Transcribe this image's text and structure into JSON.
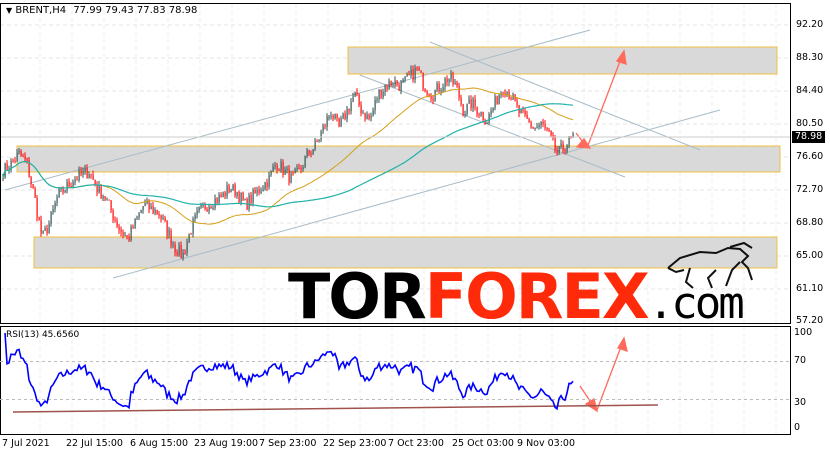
{
  "header": {
    "symbol": "BRENT,H4",
    "ohlc": "77.99 79.43 77.83 78.98",
    "collapse_icon": "triangle-down-icon"
  },
  "price_axis": {
    "ticks": [
      "92.20",
      "88.30",
      "84.40",
      "80.50",
      "76.60",
      "72.70",
      "68.80",
      "65.00",
      "61.10",
      "57.20"
    ],
    "current_price": "78.98"
  },
  "rsi": {
    "label": "RSI(13) 45.6560",
    "ticks": [
      "100",
      "70",
      "30",
      "0"
    ]
  },
  "time_axis": {
    "ticks": [
      "7 Jul 2021",
      "22 Jul 15:00",
      "6 Aug 15:00",
      "23 Aug 19:00",
      "7 Sep 23:00",
      "22 Sep 23:00",
      "7 Oct 23:00",
      "25 Oct 03:00",
      "9 Nov 03:00"
    ]
  },
  "logo": {
    "part1": "TOR",
    "part2": "FOREX",
    "part3": ".com"
  },
  "colors": {
    "bull_candle": "#2f4f4f",
    "bear_candle": "#ff0000",
    "ma_fast": "#d4a017",
    "ma_slow": "#20b2aa",
    "rsi_line": "#0000ff",
    "zone_fill": "#d9d9d9",
    "zone_border": "#f0c040",
    "arrow": "#ff6a5a",
    "logo_accent": "#ff2a0a"
  },
  "chart_data": {
    "type": "candlestick",
    "symbol": "BRENT",
    "timeframe": "H4",
    "ylim": [
      57.2,
      92.2
    ],
    "approx_close_path": [
      75,
      75.8,
      77,
      76,
      72,
      67,
      69,
      72,
      73,
      74,
      74.5,
      75,
      73,
      72,
      70,
      68,
      67,
      69,
      71,
      70.5,
      70,
      68,
      66,
      65,
      68,
      70,
      71,
      71.5,
      72,
      73,
      72.5,
      71,
      72,
      73,
      74,
      76,
      75,
      74,
      75,
      77,
      78,
      80,
      82,
      80,
      82,
      84,
      82,
      81,
      84,
      85,
      85.5,
      85,
      86,
      87,
      85,
      84,
      85,
      86,
      85,
      82,
      83,
      82,
      81,
      83,
      85,
      84,
      82,
      81,
      80,
      80.5,
      79,
      77,
      78,
      79
    ],
    "support_resistance_zones": [
      [
        86.9,
        89.8
      ],
      [
        75.0,
        78.1
      ],
      [
        63.9,
        67.6
      ]
    ],
    "rsi_trendline": "ascending support",
    "forecast": "bounce from support toward 88.30"
  }
}
